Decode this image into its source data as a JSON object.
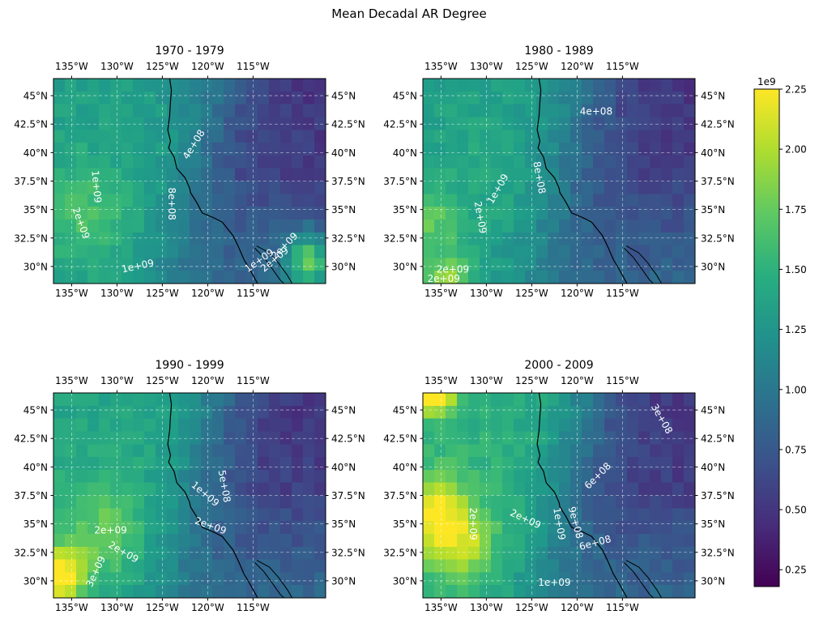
{
  "title": "Mean Decadal AR Degree",
  "chart_data": {
    "type": "heatmap",
    "title": "Mean Decadal AR Degree",
    "colormap": "viridis",
    "contour_color": "#ffffff",
    "coastline_color": "#000000",
    "grid": true,
    "xlim": [
      -137,
      -107
    ],
    "ylim": [
      28.5,
      46.5
    ],
    "lon_ticks": [
      -135,
      -130,
      -125,
      -120,
      -115
    ],
    "lon_tick_labels": [
      "135°W",
      "130°W",
      "125°W",
      "120°W",
      "115°W"
    ],
    "lat_ticks": [
      30,
      32.5,
      35,
      37.5,
      40,
      42.5,
      45
    ],
    "lat_tick_labels": [
      "30°N",
      "32.5°N",
      "35°N",
      "37.5°N",
      "40°N",
      "42.5°N",
      "45°N"
    ],
    "colorbar": {
      "range": [
        180000000,
        2250000000
      ],
      "ticks": [
        2.25,
        2.0,
        1.75,
        1.5,
        1.25,
        1.0,
        0.75,
        0.5,
        0.25
      ],
      "tick_labels": [
        "2.25",
        "2.00",
        "1.75",
        "1.50",
        "1.25",
        "1.00",
        "0.75",
        "0.50",
        "0.25"
      ],
      "exponent_label": "1e9",
      "placement": "right"
    },
    "panels": [
      {
        "title": "1970 - 1979",
        "contour_labels": [
          {
            "text": "4e+08",
            "lon": -121.5,
            "lat": 40.7,
            "angle": -58
          },
          {
            "text": "8e+08",
            "lon": -124.0,
            "lat": 35.5,
            "angle": 90
          },
          {
            "text": "1e+09",
            "lon": -132.3,
            "lat": 37.0,
            "angle": 85
          },
          {
            "text": "2e+09",
            "lon": -134.0,
            "lat": 33.8,
            "angle": 70
          },
          {
            "text": "1e+09",
            "lon": -127.7,
            "lat": 30.0,
            "angle": -12
          },
          {
            "text": "1e+09",
            "lon": -114.3,
            "lat": 30.5,
            "angle": -35
          },
          {
            "text": "2e+09",
            "lon": -112.6,
            "lat": 30.6,
            "angle": -40
          },
          {
            "text": "2e+09",
            "lon": -111.5,
            "lat": 31.8,
            "angle": -45
          }
        ]
      },
      {
        "title": "1980 - 1989",
        "contour_labels": [
          {
            "text": "4e+08",
            "lon": -117.9,
            "lat": 43.6,
            "angle": 0
          },
          {
            "text": "8e+08",
            "lon": -124.2,
            "lat": 37.8,
            "angle": 80
          },
          {
            "text": "1e+09",
            "lon": -128.7,
            "lat": 36.8,
            "angle": -60
          },
          {
            "text": "2e+09",
            "lon": -130.7,
            "lat": 34.3,
            "angle": 80
          },
          {
            "text": "2e+09",
            "lon": -133.7,
            "lat": 29.7,
            "angle": 0
          },
          {
            "text": "2e+09",
            "lon": -134.7,
            "lat": 28.9,
            "angle": 0
          }
        ]
      },
      {
        "title": "1990 - 1999",
        "contour_labels": [
          {
            "text": "5e+08",
            "lon": -118.2,
            "lat": 38.3,
            "angle": 80
          },
          {
            "text": "1e+09",
            "lon": -120.3,
            "lat": 37.6,
            "angle": 40
          },
          {
            "text": "2e+09",
            "lon": -119.7,
            "lat": 34.8,
            "angle": 20
          },
          {
            "text": "2e+09",
            "lon": -130.7,
            "lat": 34.4,
            "angle": 0
          },
          {
            "text": "2e+09",
            "lon": -129.3,
            "lat": 32.5,
            "angle": 30
          },
          {
            "text": "3e+09",
            "lon": -132.3,
            "lat": 30.8,
            "angle": -65
          }
        ]
      },
      {
        "title": "2000 - 2009",
        "contour_labels": [
          {
            "text": "3e+08",
            "lon": -110.7,
            "lat": 44.2,
            "angle": 60
          },
          {
            "text": "6e+08",
            "lon": -117.7,
            "lat": 39.2,
            "angle": -45
          },
          {
            "text": "2e+09",
            "lon": -125.7,
            "lat": 35.4,
            "angle": 25
          },
          {
            "text": "2e+09",
            "lon": -131.5,
            "lat": 35.0,
            "angle": 90
          },
          {
            "text": "1e+09",
            "lon": -122.0,
            "lat": 35.0,
            "angle": 80
          },
          {
            "text": "9e+08",
            "lon": -120.2,
            "lat": 35.1,
            "angle": 75
          },
          {
            "text": "6e+08",
            "lon": -118.0,
            "lat": 33.3,
            "angle": -15
          },
          {
            "text": "1e+09",
            "lon": -122.5,
            "lat": 29.8,
            "angle": 0
          }
        ]
      }
    ]
  }
}
